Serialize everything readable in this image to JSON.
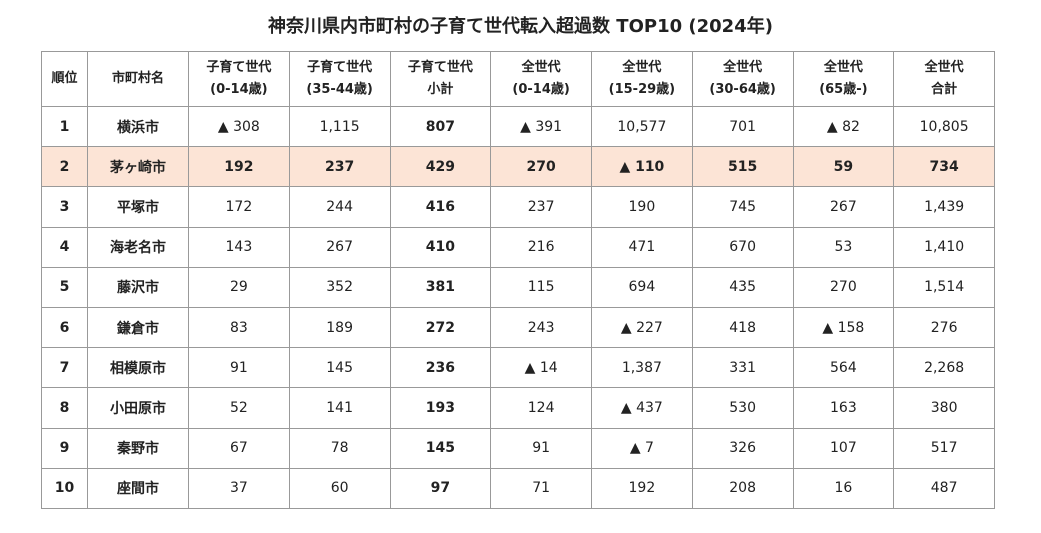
{
  "title": "神奈川県内市町村の子育て世代転入超過数 TOP10 (2024年)",
  "table": {
    "header": [
      [
        "順位"
      ],
      [
        "市町村名"
      ],
      [
        "子育て世代",
        "(0-14歳)"
      ],
      [
        "子育て世代",
        "(35-44歳)"
      ],
      [
        "子育て世代",
        "小計"
      ],
      [
        "全世代",
        "(0-14歳)"
      ],
      [
        "全世代",
        "(15-29歳)"
      ],
      [
        "全世代",
        "(30-64歳)"
      ],
      [
        "全世代",
        "(65歳-)"
      ],
      [
        "全世代",
        "合計"
      ]
    ],
    "rows": [
      [
        "1",
        "横浜市",
        "▲ 308",
        "1,115",
        "807",
        "▲ 391",
        "10,577",
        "701",
        "▲ 82",
        "10,805"
      ],
      [
        "2",
        "茅ヶ崎市",
        "192",
        "237",
        "429",
        "270",
        "▲ 110",
        "515",
        "59",
        "734"
      ],
      [
        "3",
        "平塚市",
        "172",
        "244",
        "416",
        "237",
        "190",
        "745",
        "267",
        "1,439"
      ],
      [
        "4",
        "海老名市",
        "143",
        "267",
        "410",
        "216",
        "471",
        "670",
        "53",
        "1,410"
      ],
      [
        "5",
        "藤沢市",
        "29",
        "352",
        "381",
        "115",
        "694",
        "435",
        "270",
        "1,514"
      ],
      [
        "6",
        "鎌倉市",
        "83",
        "189",
        "272",
        "243",
        "▲ 227",
        "418",
        "▲ 158",
        "276"
      ],
      [
        "7",
        "相模原市",
        "91",
        "145",
        "236",
        "▲ 14",
        "1,387",
        "331",
        "564",
        "2,268"
      ],
      [
        "8",
        "小田原市",
        "52",
        "141",
        "193",
        "124",
        "▲ 437",
        "530",
        "163",
        "380"
      ],
      [
        "9",
        "秦野市",
        "67",
        "78",
        "145",
        "91",
        "▲ 7",
        "326",
        "107",
        "517"
      ],
      [
        "10",
        "座間市",
        "37",
        "60",
        "97",
        "71",
        "192",
        "208",
        "16",
        "487"
      ]
    ]
  }
}
